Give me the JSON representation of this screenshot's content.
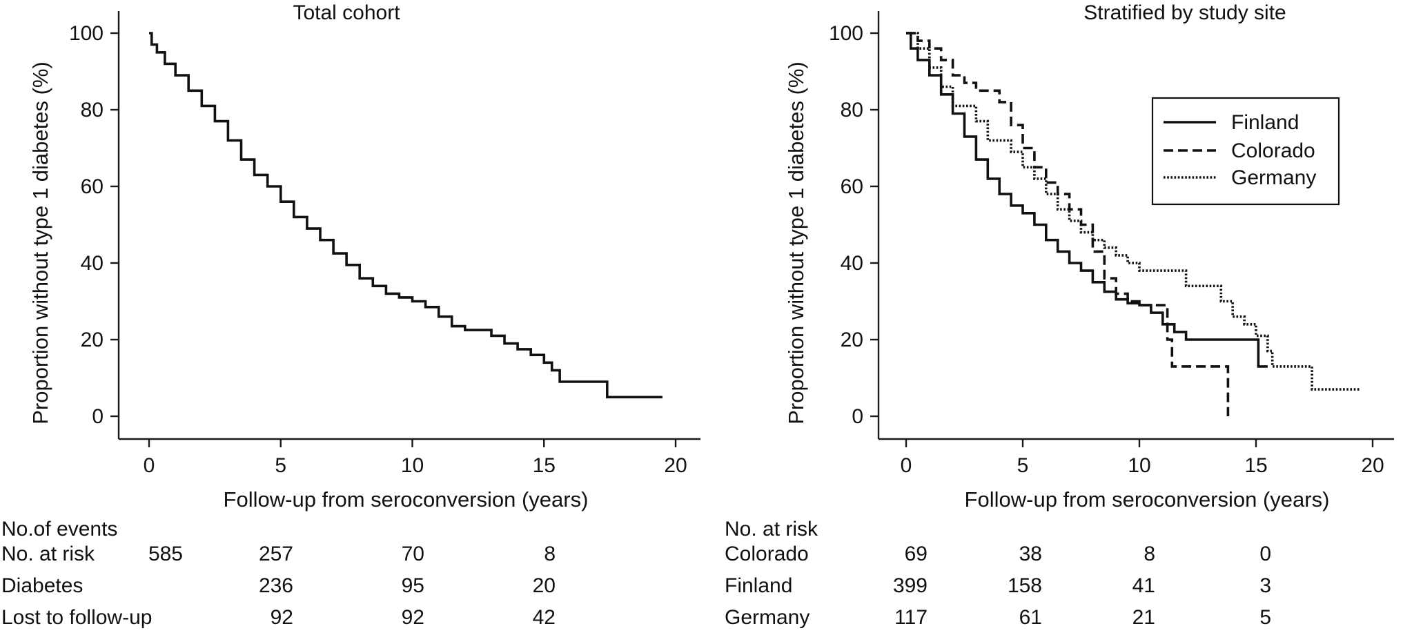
{
  "chart_data": [
    {
      "type": "line",
      "subtype": "kaplan-meier step",
      "title": "Total cohort",
      "xlabel": "Follow-up from seroconversion (years)",
      "ylabel": "Proportion without type 1 diabetes (%)",
      "xlim": [
        0,
        20
      ],
      "ylim": [
        0,
        100
      ],
      "xticks": [
        0,
        5,
        10,
        15,
        20
      ],
      "yticks": [
        0,
        20,
        40,
        60,
        80,
        100
      ],
      "series": [
        {
          "name": "Total cohort",
          "style": "solid",
          "points": [
            [
              0,
              100
            ],
            [
              0.1,
              97
            ],
            [
              0.3,
              95
            ],
            [
              0.6,
              92
            ],
            [
              1,
              89
            ],
            [
              1.5,
              85
            ],
            [
              2,
              81
            ],
            [
              2.5,
              77
            ],
            [
              3,
              72
            ],
            [
              3.5,
              67
            ],
            [
              4,
              63
            ],
            [
              4.5,
              60
            ],
            [
              5,
              56
            ],
            [
              5.5,
              52
            ],
            [
              6,
              49
            ],
            [
              6.5,
              46
            ],
            [
              7,
              42.5
            ],
            [
              7.5,
              39.5
            ],
            [
              8,
              36
            ],
            [
              8.5,
              34
            ],
            [
              9,
              32
            ],
            [
              9.5,
              31
            ],
            [
              10,
              30
            ],
            [
              10.5,
              28.5
            ],
            [
              11,
              26
            ],
            [
              11.5,
              23.5
            ],
            [
              12,
              22.5
            ],
            [
              12.5,
              22.5
            ],
            [
              13,
              21
            ],
            [
              13.5,
              19
            ],
            [
              14,
              17.5
            ],
            [
              14.5,
              16
            ],
            [
              15,
              14
            ],
            [
              15.3,
              12
            ],
            [
              15.6,
              9
            ],
            [
              16.5,
              9
            ],
            [
              17.4,
              9
            ],
            [
              17.4,
              5
            ],
            [
              19.5,
              5
            ]
          ]
        }
      ],
      "table": {
        "header": "No.of events",
        "rows": [
          {
            "label": "No. at risk",
            "values": [
              "585",
              "257",
              "70",
              "8"
            ]
          },
          {
            "label": "Diabetes",
            "values": [
              "",
              "236",
              "95",
              "20"
            ]
          },
          {
            "label": "Lost to follow-up",
            "values": [
              "",
              "92",
              "92",
              "42"
            ]
          }
        ]
      }
    },
    {
      "type": "line",
      "subtype": "kaplan-meier step",
      "title": "Stratified by study site",
      "xlabel": "Follow-up from seroconversion (years)",
      "ylabel": "Proportion without type 1 diabetes (%)",
      "xlim": [
        0,
        20
      ],
      "ylim": [
        0,
        100
      ],
      "xticks": [
        0,
        5,
        10,
        15,
        20
      ],
      "yticks": [
        0,
        20,
        40,
        60,
        80,
        100
      ],
      "legend": {
        "position": "top-right",
        "entries": [
          "Finland",
          "Colorado",
          "Germany"
        ]
      },
      "series": [
        {
          "name": "Finland",
          "style": "solid",
          "points": [
            [
              0,
              100
            ],
            [
              0.2,
              96
            ],
            [
              0.5,
              93
            ],
            [
              1,
              89
            ],
            [
              1.5,
              84
            ],
            [
              2,
              79
            ],
            [
              2.5,
              73
            ],
            [
              3,
              67
            ],
            [
              3.5,
              62
            ],
            [
              4,
              58
            ],
            [
              4.5,
              55
            ],
            [
              5,
              53
            ],
            [
              5.5,
              50
            ],
            [
              6,
              46
            ],
            [
              6.5,
              43
            ],
            [
              7,
              40
            ],
            [
              7.5,
              38
            ],
            [
              8,
              35
            ],
            [
              8.5,
              32.5
            ],
            [
              9,
              30.5
            ],
            [
              9.5,
              29.5
            ],
            [
              10,
              29
            ],
            [
              10.5,
              27
            ],
            [
              11,
              24
            ],
            [
              11.5,
              22
            ],
            [
              12,
              20
            ],
            [
              13,
              20
            ],
            [
              14,
              20
            ],
            [
              15,
              20
            ],
            [
              15.1,
              13
            ],
            [
              15.5,
              13
            ]
          ]
        },
        {
          "name": "Colorado",
          "style": "dashed",
          "points": [
            [
              0,
              100
            ],
            [
              0.5,
              98
            ],
            [
              1,
              96
            ],
            [
              1.5,
              93
            ],
            [
              2,
              89
            ],
            [
              2.5,
              87
            ],
            [
              3,
              85
            ],
            [
              3.5,
              85
            ],
            [
              4,
              82
            ],
            [
              4.5,
              76
            ],
            [
              5,
              70
            ],
            [
              5.5,
              65
            ],
            [
              6,
              61
            ],
            [
              6.5,
              58
            ],
            [
              7,
              54
            ],
            [
              7.5,
              50
            ],
            [
              8,
              43
            ],
            [
              8.5,
              36
            ],
            [
              9,
              32
            ],
            [
              9.5,
              30
            ],
            [
              10,
              29
            ],
            [
              10.5,
              29
            ],
            [
              11,
              29
            ],
            [
              11.2,
              20
            ],
            [
              11.4,
              13
            ],
            [
              12.5,
              13
            ],
            [
              13.5,
              13
            ],
            [
              13.8,
              0
            ]
          ]
        },
        {
          "name": "Germany",
          "style": "dotted",
          "points": [
            [
              0,
              100
            ],
            [
              0.5,
              96
            ],
            [
              1,
              91
            ],
            [
              1.5,
              86
            ],
            [
              2,
              81
            ],
            [
              2.5,
              81
            ],
            [
              3,
              77
            ],
            [
              3.5,
              72
            ],
            [
              4,
              72
            ],
            [
              4.5,
              69
            ],
            [
              5,
              65
            ],
            [
              5.5,
              62
            ],
            [
              6,
              58
            ],
            [
              6.5,
              54
            ],
            [
              7,
              51
            ],
            [
              7.5,
              48
            ],
            [
              8,
              46
            ],
            [
              8.5,
              44
            ],
            [
              9,
              42
            ],
            [
              9.5,
              40
            ],
            [
              10,
              38
            ],
            [
              11,
              38
            ],
            [
              12,
              34
            ],
            [
              13,
              34
            ],
            [
              13.5,
              30
            ],
            [
              14,
              26
            ],
            [
              14.5,
              24
            ],
            [
              15,
              21
            ],
            [
              15.5,
              17
            ],
            [
              15.7,
              13
            ],
            [
              17,
              13
            ],
            [
              17.4,
              7
            ],
            [
              18,
              7
            ],
            [
              19.5,
              7
            ]
          ]
        }
      ],
      "table": {
        "header": "No. at risk",
        "rows": [
          {
            "label": "Colorado",
            "values": [
              "69",
              "38",
              "8",
              "0"
            ]
          },
          {
            "label": "Finland",
            "values": [
              "399",
              "158",
              "41",
              "3"
            ]
          },
          {
            "label": "Germany",
            "values": [
              "117",
              "61",
              "21",
              "5"
            ]
          }
        ]
      }
    }
  ]
}
